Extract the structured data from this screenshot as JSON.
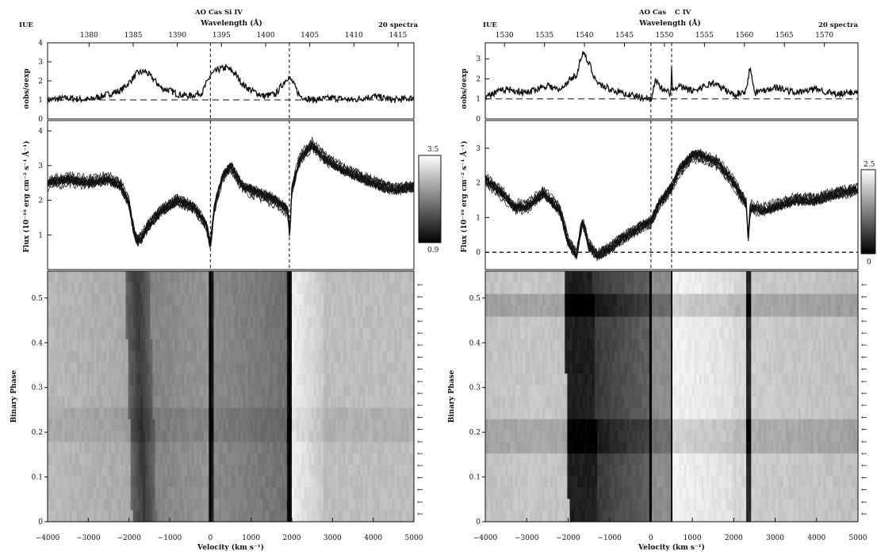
{
  "chart_data": [
    {
      "type": "heatmap",
      "header": {
        "instrument": "IUE",
        "star": "AO Cas",
        "line": "Si IV",
        "spectra": "20 spectra"
      },
      "wavelength_axis": {
        "label": "Wavelength (Å)",
        "ticks": [
          1380,
          1385,
          1390,
          1395,
          1400,
          1405,
          1410,
          1415
        ],
        "range": [
          1375.3,
          1416.8
        ]
      },
      "velocity_axis": {
        "label": "Velocity (km s⁻¹)",
        "ticks": [
          -4000,
          -3000,
          -2000,
          -1000,
          0,
          1000,
          2000,
          3000,
          4000,
          5000
        ],
        "range": [
          -4000,
          5000
        ]
      },
      "sigma_panel": {
        "ylabel": "σobs/σexp",
        "ylim": [
          0,
          4
        ],
        "yticks": [
          0,
          1,
          2,
          3,
          4
        ],
        "reference": 1,
        "x": [
          -4000,
          -3500,
          -3000,
          -2500,
          -2200,
          -2000,
          -1800,
          -1600,
          -1400,
          -1200,
          -1000,
          -800,
          -500,
          -200,
          0,
          200,
          400,
          600,
          800,
          1000,
          1300,
          1600,
          1900,
          2000,
          2200,
          2500,
          3000,
          3500,
          4000,
          4500,
          5000
        ],
        "y": [
          1.0,
          1.1,
          1.0,
          1.3,
          1.5,
          1.9,
          2.4,
          2.5,
          2.1,
          1.6,
          1.5,
          1.3,
          1.2,
          1.4,
          2.3,
          2.6,
          2.7,
          2.4,
          1.8,
          1.5,
          1.2,
          1.3,
          2.2,
          2.0,
          1.2,
          1.0,
          1.1,
          1.0,
          1.2,
          1.0,
          1.1
        ]
      },
      "flux_panel": {
        "ylabel": "Flux (10⁻¹⁰ erg cm⁻² s⁻¹ Å⁻¹)",
        "ylim": [
          0,
          4.3
        ],
        "yticks": [
          1,
          2,
          3,
          4
        ],
        "x": [
          -4000,
          -3500,
          -3000,
          -2500,
          -2200,
          -2000,
          -1900,
          -1800,
          -1700,
          -1500,
          -1200,
          -800,
          -400,
          -100,
          0,
          100,
          300,
          500,
          800,
          1200,
          1600,
          1900,
          1950,
          2000,
          2200,
          2500,
          2800,
          3200,
          3600,
          4000,
          4500,
          5000
        ],
        "y": [
          2.5,
          2.6,
          2.5,
          2.6,
          2.4,
          1.9,
          1.2,
          0.8,
          0.9,
          1.3,
          1.7,
          2.0,
          1.8,
          1.3,
          0.7,
          1.8,
          2.7,
          3.0,
          2.4,
          2.2,
          2.0,
          1.7,
          1.0,
          2.3,
          3.2,
          3.6,
          3.2,
          2.9,
          2.7,
          2.5,
          2.3,
          2.4
        ],
        "spread": 0.3
      },
      "phase_panel": {
        "ylabel": "Binary Phase",
        "ylim": [
          0,
          0.56
        ],
        "yticks": [
          0,
          0.1,
          0.2,
          0.3,
          0.4,
          0.5
        ]
      },
      "colorbar": {
        "max": "3.5",
        "min": "0.9"
      }
    },
    {
      "type": "heatmap",
      "header": {
        "instrument": "IUE",
        "star": "AO Cas",
        "line": "C IV",
        "spectra": "20 spectra"
      },
      "wavelength_axis": {
        "label": "Wavelength (Å)",
        "ticks": [
          1530,
          1535,
          1540,
          1545,
          1550,
          1555,
          1560,
          1565,
          1570
        ],
        "range": [
          1527.6,
          1574.2
        ]
      },
      "velocity_axis": {
        "label": "Velocity (km s⁻¹)",
        "ticks": [
          -4000,
          -3000,
          -2000,
          -1000,
          0,
          1000,
          2000,
          3000,
          4000,
          5000
        ],
        "range": [
          -4000,
          5000
        ]
      },
      "sigma_panel": {
        "ylabel": "σobs/σexp",
        "ylim": [
          0,
          3.8
        ],
        "yticks": [
          0,
          1,
          2,
          3
        ],
        "reference": 1,
        "x": [
          -4000,
          -3500,
          -3000,
          -2500,
          -2200,
          -2000,
          -1800,
          -1650,
          -1500,
          -1300,
          -1000,
          -700,
          -300,
          0,
          100,
          300,
          480,
          500,
          520,
          700,
          1000,
          1500,
          2000,
          2300,
          2400,
          2500,
          3000,
          3500,
          4000,
          4500,
          5000
        ],
        "y": [
          1.1,
          1.5,
          1.3,
          1.7,
          1.4,
          1.9,
          2.2,
          3.3,
          2.8,
          1.8,
          1.5,
          1.3,
          1.1,
          1.0,
          1.9,
          1.4,
          1.3,
          2.5,
          1.4,
          1.6,
          1.4,
          1.8,
          1.2,
          1.4,
          2.7,
          1.3,
          1.6,
          1.3,
          1.5,
          1.2,
          1.4
        ]
      },
      "flux_panel": {
        "ylabel": "Flux (10⁻¹⁰ erg cm⁻² s⁻¹ Å⁻¹)",
        "ylim": [
          -0.5,
          3.8
        ],
        "yticks": [
          0,
          1,
          2,
          3
        ],
        "reference": 0,
        "x": [
          -4000,
          -3600,
          -3300,
          -3000,
          -2600,
          -2200,
          -2000,
          -1800,
          -1650,
          -1500,
          -1300,
          -1000,
          -700,
          -300,
          0,
          200,
          500,
          700,
          1000,
          1200,
          1600,
          2000,
          2300,
          2350,
          2400,
          2700,
          3000,
          3500,
          4000,
          4500,
          5000
        ],
        "y": [
          2.1,
          1.7,
          1.3,
          1.3,
          1.7,
          1.2,
          0.3,
          -0.1,
          0.9,
          0.2,
          -0.1,
          0.1,
          0.4,
          0.7,
          0.9,
          1.4,
          1.9,
          2.4,
          2.8,
          2.8,
          2.6,
          2.0,
          1.4,
          0.4,
          1.3,
          1.2,
          1.3,
          1.5,
          1.5,
          1.7,
          1.8
        ],
        "spread": 0.3
      },
      "phase_panel": {
        "ylabel": "Binary Phase",
        "ylim": [
          0,
          0.56
        ],
        "yticks": [
          0,
          0.1,
          0.2,
          0.3,
          0.4,
          0.5
        ]
      },
      "colorbar": {
        "max": "2.5",
        "min": "0"
      }
    }
  ]
}
